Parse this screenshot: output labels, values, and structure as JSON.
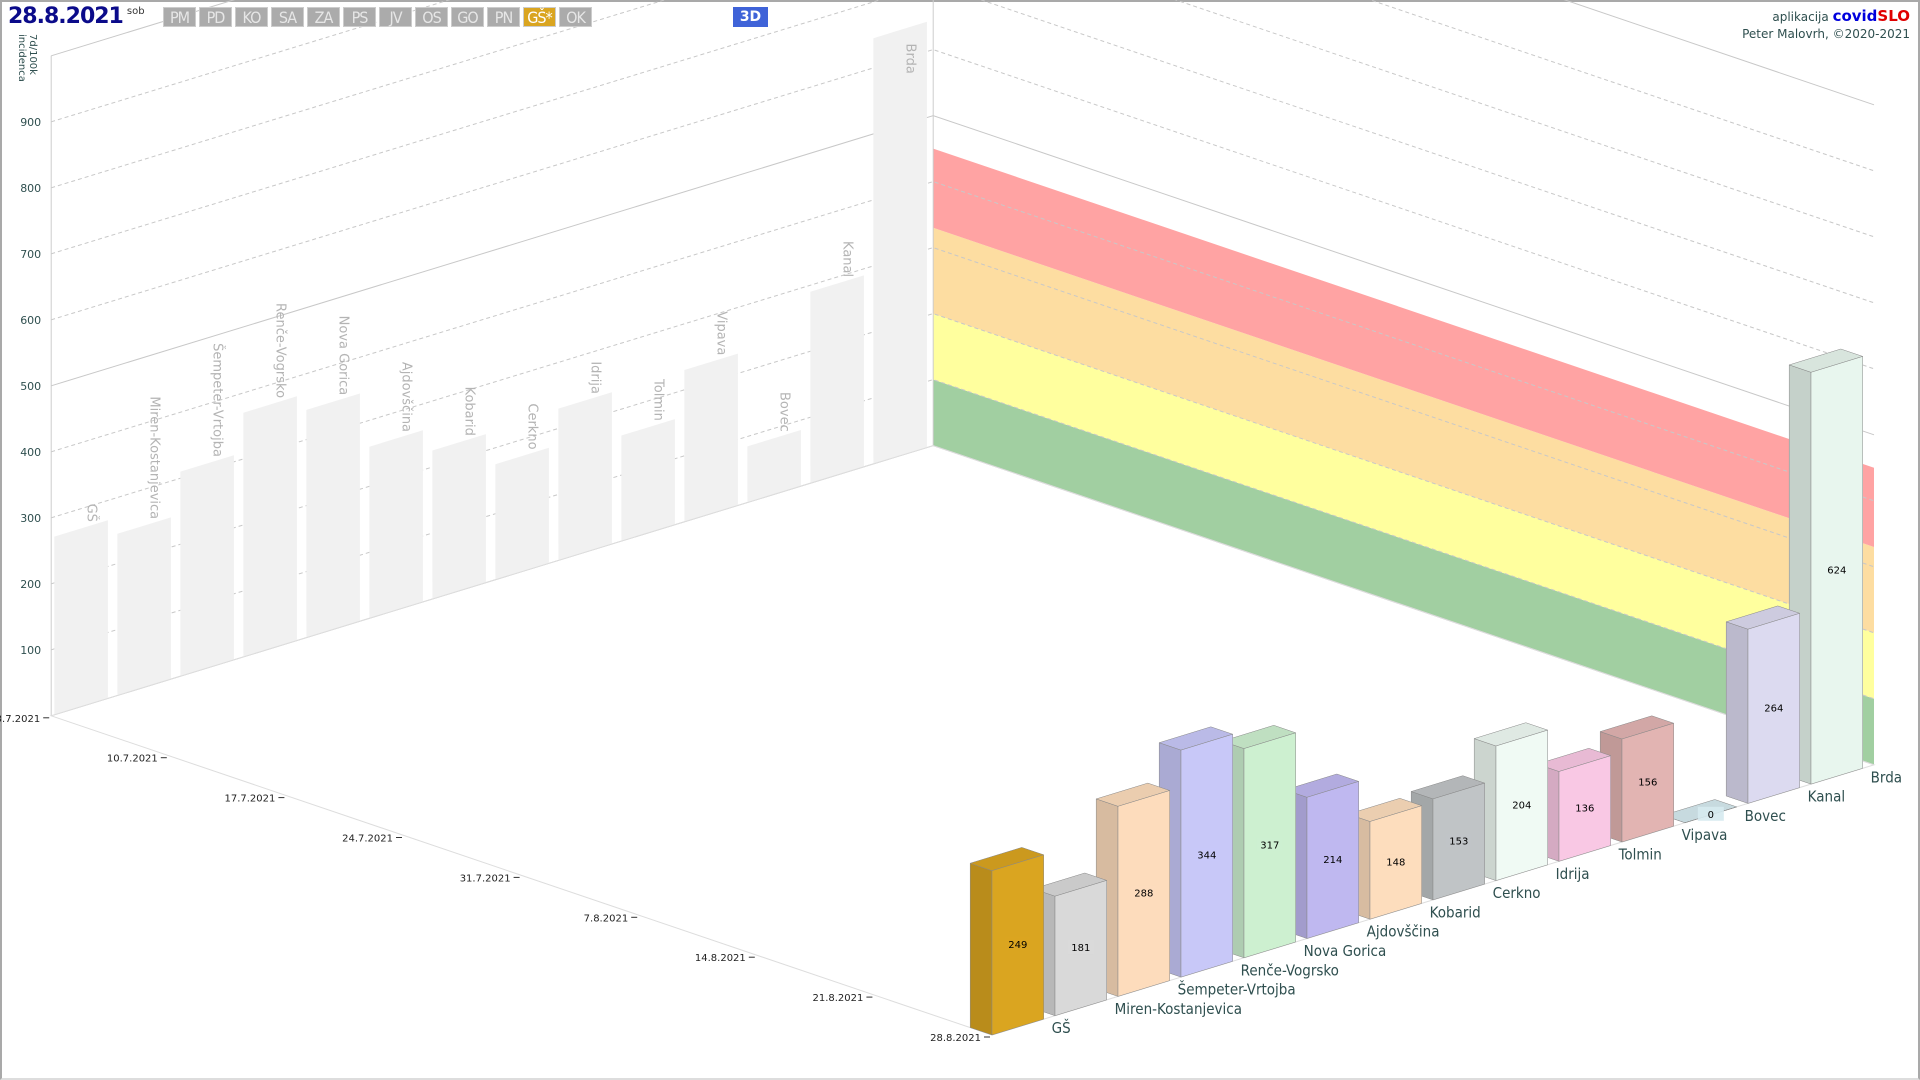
{
  "header": {
    "date": "28.8.2021",
    "day_of_week": "sob",
    "regions": [
      {
        "label": "PM",
        "active": false
      },
      {
        "label": "PD",
        "active": false
      },
      {
        "label": "KO",
        "active": false
      },
      {
        "label": "SA",
        "active": false
      },
      {
        "label": "ZA",
        "active": false
      },
      {
        "label": "PS",
        "active": false
      },
      {
        "label": "JV",
        "active": false
      },
      {
        "label": "OS",
        "active": false
      },
      {
        "label": "GO",
        "active": false
      },
      {
        "label": "PN",
        "active": false
      },
      {
        "label": "GŠ*",
        "active": true
      },
      {
        "label": "OK",
        "active": false
      }
    ],
    "view_button": "3D"
  },
  "credit": {
    "app_prefix": "aplikacija",
    "brand_a": "covid",
    "brand_b": "SLO",
    "author": "Peter Malovrh, ©2020-2021"
  },
  "chart_data": {
    "type": "bar",
    "subtype": "3d-bar",
    "ylabel": "7d/100k incidenca",
    "ylim": [
      0,
      1000
    ],
    "yticks": [
      100,
      200,
      300,
      400,
      500,
      600,
      700,
      800,
      900
    ],
    "date_ticks": [
      "3.7.2021",
      "10.7.2021",
      "17.7.2021",
      "24.7.2021",
      "31.7.2021",
      "7.8.2021",
      "14.8.2021",
      "21.8.2021",
      "28.8.2021"
    ],
    "categories": [
      "GŠ",
      "Miren-Kostanjevica",
      "Šempeter-Vrtojba",
      "Renče-Vogrsko",
      "Nova Gorica",
      "Ajdovščina",
      "Kobarid",
      "Cerkno",
      "Idrija",
      "Tolmin",
      "Vipava",
      "Bovec",
      "Kanal",
      "Brda"
    ],
    "values_latest": [
      249,
      181,
      288,
      344,
      317,
      214,
      148,
      153,
      204,
      136,
      156,
      0,
      264,
      624
    ],
    "values_period_max_approx": [
      270,
      245,
      310,
      370,
      345,
      260,
      225,
      175,
      230,
      160,
      230,
      85,
      290,
      645
    ],
    "colors": [
      "#daa520",
      "#d9d9d9",
      "#fddcbc",
      "#c8c8f8",
      "#cdf0d0",
      "#bfb8f0",
      "#fdddbd",
      "#c0c4c6",
      "#f0faf4",
      "#f9c8e4",
      "#e2b4b2",
      "#d6eaf0",
      "#dcdaf0",
      "#e8f6ee"
    ],
    "threshold_bands": [
      {
        "from": 0,
        "to": 100,
        "color": "#9ccc9c"
      },
      {
        "from": 100,
        "to": 200,
        "color": "#ffff99"
      },
      {
        "from": 200,
        "to": 330,
        "color": "#fddb9c"
      },
      {
        "from": 330,
        "to": 450,
        "color": "#ff9e9e"
      }
    ],
    "grid": true
  }
}
